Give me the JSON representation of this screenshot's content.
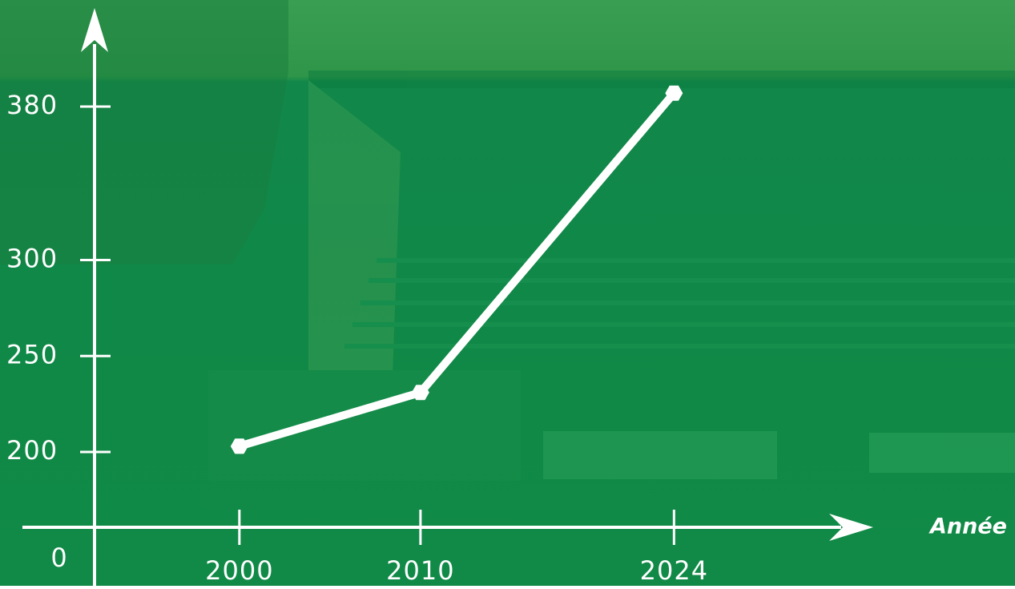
{
  "chart_data": {
    "type": "line",
    "x_label": "Année",
    "x": [
      2000,
      2010,
      2024
    ],
    "series": [
      {
        "color": "#ffffff",
        "values": [
          203,
          231,
          387
        ]
      }
    ],
    "xlim": [
      1992,
      2035
    ],
    "xticks": [
      2000,
      2010,
      2024
    ],
    "ylim": [
      0,
      410
    ],
    "yticks": [
      0,
      200,
      250,
      300,
      380
    ]
  }
}
